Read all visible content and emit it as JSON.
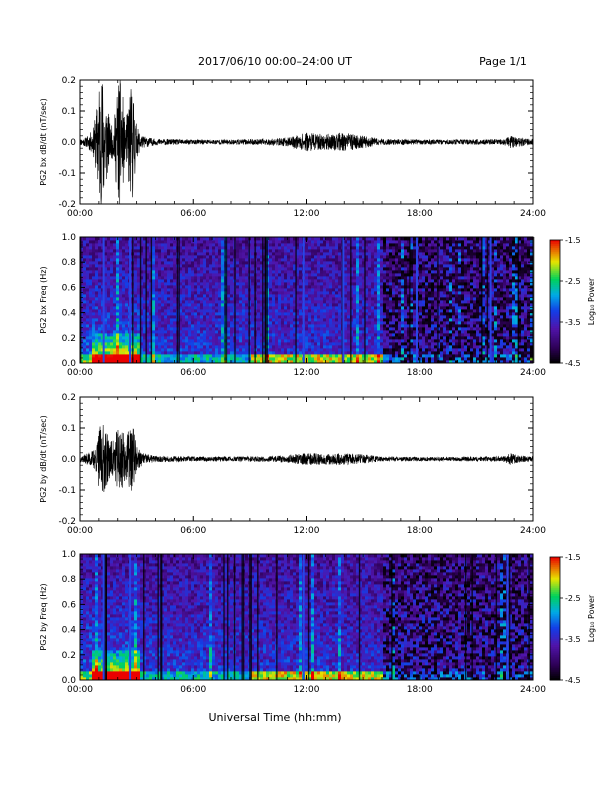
{
  "header": {
    "title": "2017/06/10  00:00–24:00 UT",
    "page": "Page 1/1"
  },
  "xaxis": {
    "label": "Universal Time (hh:mm)",
    "ticks": [
      "00:00",
      "06:00",
      "12:00",
      "18:00",
      "24:00"
    ],
    "range_hours": [
      0,
      24
    ]
  },
  "colorbar": {
    "label": "Log₁₀ Power",
    "ticks": [
      "-1.5",
      "-2.5",
      "-3.5",
      "-4.5"
    ],
    "range": [
      -4.5,
      -1.5
    ]
  },
  "chart_data": [
    {
      "type": "line",
      "ylabel": "PG2 bx dB/dt (nT/sec)",
      "ylim": [
        -0.2,
        0.2
      ],
      "yticks": [
        "0.2",
        "0.1",
        "0.0",
        "-0.1",
        "-0.2"
      ],
      "envelope_amplitude": {
        "hours": [
          0,
          0.3,
          0.7,
          0.9,
          1.0,
          1.2,
          1.4,
          1.6,
          1.8,
          2.0,
          2.2,
          2.4,
          2.6,
          2.8,
          3.0,
          3.3,
          4,
          6,
          8,
          10,
          11,
          12,
          13,
          14,
          15,
          16,
          18,
          20,
          22.4,
          22.8,
          23.2,
          24
        ],
        "amplitude": [
          0.01,
          0.015,
          0.04,
          0.12,
          0.2,
          0.22,
          0.15,
          0.05,
          0.06,
          0.2,
          0.22,
          0.04,
          0.16,
          0.19,
          0.05,
          0.02,
          0.01,
          0.008,
          0.008,
          0.01,
          0.014,
          0.03,
          0.025,
          0.03,
          0.02,
          0.01,
          0.008,
          0.008,
          0.009,
          0.02,
          0.015,
          0.01
        ]
      }
    },
    {
      "type": "heatmap",
      "ylabel": "PG2 bx Freq (Hz)",
      "ylim": [
        0,
        1.0
      ],
      "yticks": [
        "1.0",
        "0.8",
        "0.6",
        "0.4",
        "0.2",
        "0.0"
      ],
      "bright_vertical_lines_hours": [
        1.2,
        2.6,
        11.8,
        13.9,
        17.8,
        21.7
      ]
    },
    {
      "type": "line",
      "ylabel": "PG2 by dB/dt (nT/sec)",
      "ylim": [
        -0.2,
        0.2
      ],
      "yticks": [
        "0.2",
        "0.1",
        "0.0",
        "-0.1",
        "-0.2"
      ],
      "envelope_amplitude": {
        "hours": [
          0,
          0.3,
          0.7,
          0.9,
          1.0,
          1.2,
          1.4,
          1.6,
          1.8,
          2.0,
          2.2,
          2.4,
          2.6,
          2.8,
          3.0,
          3.3,
          4,
          6,
          8,
          10,
          11,
          12,
          13,
          14,
          15,
          16,
          18,
          20,
          22.4,
          22.8,
          23.2,
          24
        ],
        "amplitude": [
          0.01,
          0.015,
          0.03,
          0.05,
          0.1,
          0.12,
          0.09,
          0.06,
          0.07,
          0.1,
          0.12,
          0.06,
          0.1,
          0.12,
          0.04,
          0.02,
          0.01,
          0.008,
          0.008,
          0.009,
          0.012,
          0.02,
          0.018,
          0.02,
          0.015,
          0.008,
          0.007,
          0.007,
          0.008,
          0.02,
          0.012,
          0.008
        ]
      }
    },
    {
      "type": "heatmap",
      "ylabel": "PG2 by Freq (Hz)",
      "ylim": [
        0,
        1.0
      ],
      "yticks": [
        "1.0",
        "0.8",
        "0.6",
        "0.4",
        "0.2",
        "0.0"
      ],
      "bright_vertical_lines_hours": [
        1.2,
        2.6,
        11.8,
        22.6
      ]
    }
  ]
}
